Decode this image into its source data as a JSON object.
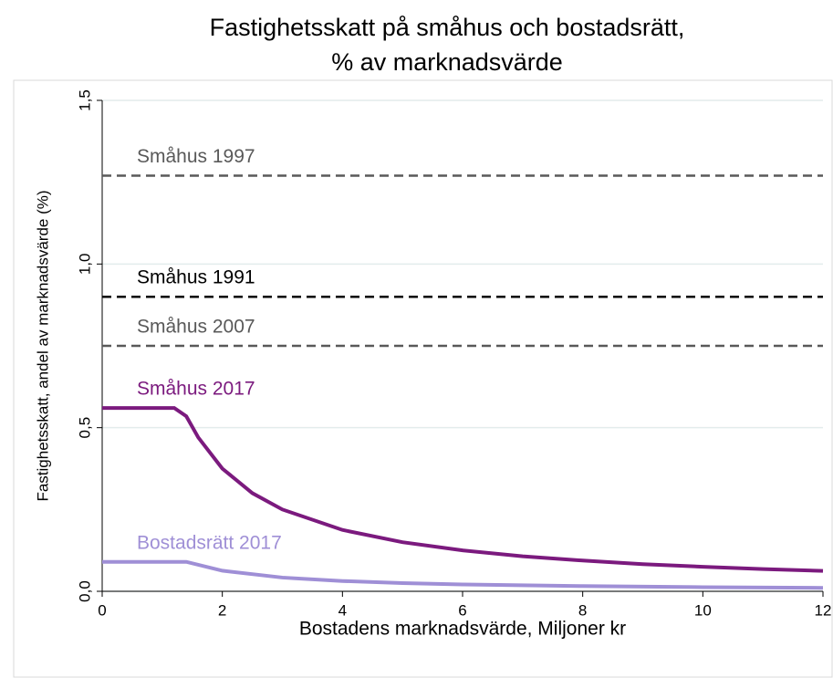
{
  "chart_data": {
    "type": "line",
    "title": [
      "Fastighetsskatt på småhus och bostadsrätt,",
      "% av marknadsvärde"
    ],
    "x_label": "Bostadens marknadsvärde, Miljoner kr",
    "y_label": "Fastighetsskatt, andel av marknadsvärde (%)",
    "xlim": [
      0,
      12
    ],
    "xticks": [
      0,
      2,
      4,
      6,
      8,
      10,
      12
    ],
    "ylim": [
      0,
      1.5
    ],
    "yticks": [
      {
        "value": 0,
        "label": "0,0"
      },
      {
        "value": 0.5,
        "label": "0,5"
      },
      {
        "value": 1,
        "label": "1,0"
      },
      {
        "value": 1.5,
        "label": "1,5"
      }
    ],
    "grid": true,
    "series": [
      {
        "name": "Småhus 1997",
        "color": "#595959",
        "dashed": true,
        "x": [
          0,
          12
        ],
        "values": [
          1.27,
          1.27
        ]
      },
      {
        "name": "Småhus 1991",
        "color": "#000000",
        "dashed": true,
        "x": [
          0,
          12
        ],
        "values": [
          0.9,
          0.9
        ]
      },
      {
        "name": "Småhus 2007",
        "color": "#595959",
        "dashed": true,
        "x": [
          0,
          12
        ],
        "values": [
          0.75,
          0.75
        ]
      },
      {
        "name": "Småhus 2017",
        "color": "#7b1a7e",
        "dashed": false,
        "x": [
          0,
          1.2,
          1.4,
          1.6,
          2,
          2.5,
          3,
          4,
          5,
          6,
          7,
          8,
          9,
          10,
          11,
          12
        ],
        "values": [
          0.56,
          0.56,
          0.535,
          0.47,
          0.375,
          0.3,
          0.25,
          0.1875,
          0.15,
          0.125,
          0.107,
          0.094,
          0.083,
          0.075,
          0.068,
          0.0625
        ]
      },
      {
        "name": "Bostadsrätt 2017",
        "color": "#9f8fd6",
        "dashed": false,
        "x": [
          0,
          1.4,
          2,
          3,
          4,
          5,
          6,
          8,
          10,
          12
        ],
        "values": [
          0.09,
          0.09,
          0.063,
          0.042,
          0.0315,
          0.025,
          0.021,
          0.016,
          0.0126,
          0.0105
        ]
      }
    ]
  }
}
